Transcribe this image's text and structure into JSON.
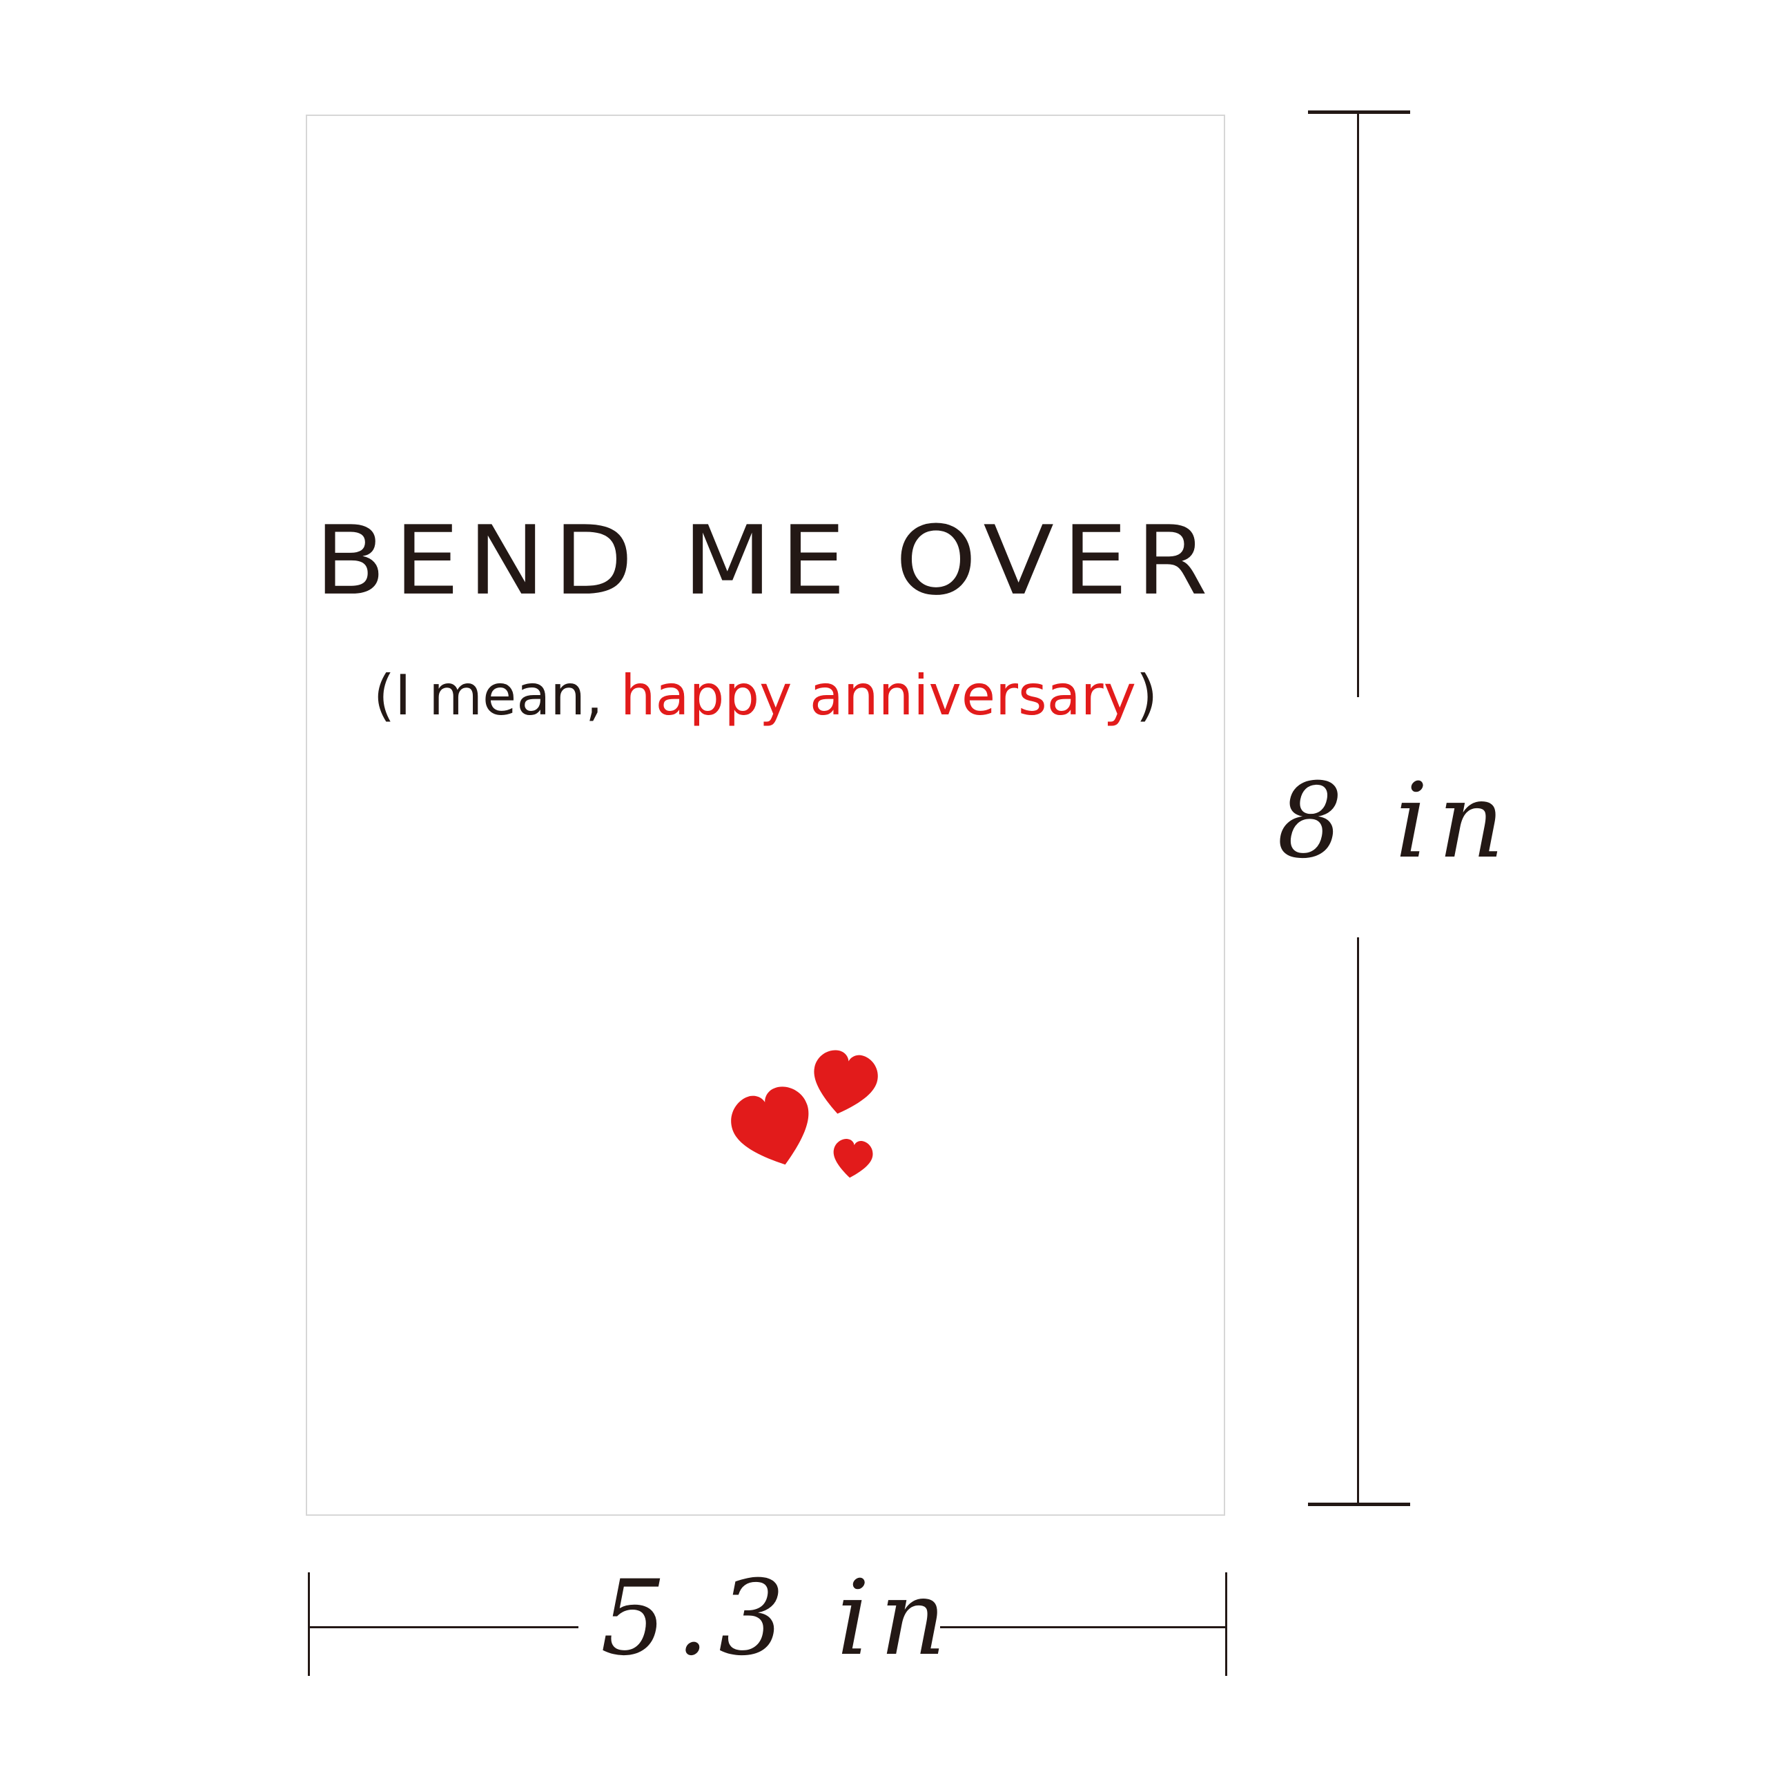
{
  "card": {
    "headline": "BEND ME OVER",
    "subline_open": "(I mean, ",
    "subline_accent": "happy anniversary",
    "subline_close": ")"
  },
  "dimensions": {
    "height_label": "8 in",
    "width_label": "5.3 in"
  },
  "colors": {
    "text": "#231815",
    "accent": "#e21b1b",
    "card_border": "#d6d6d6"
  },
  "icons": [
    "heart-icon",
    "heart-icon",
    "heart-icon"
  ]
}
